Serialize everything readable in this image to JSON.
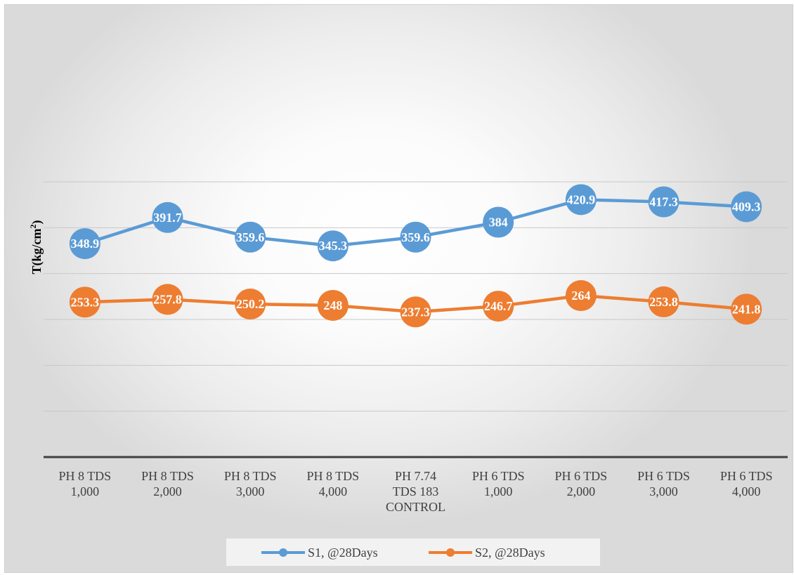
{
  "chart_data": {
    "type": "line",
    "ylabel": "T(kg/cm",
    "ylabel_sup": "2",
    "ylabel_close": ")",
    "categories": [
      [
        "PH 8 TDS",
        "1,000"
      ],
      [
        "PH 8 TDS",
        "2,000"
      ],
      [
        "PH 8 TDS",
        "3,000"
      ],
      [
        "PH 8 TDS",
        "4,000"
      ],
      [
        "PH 7.74",
        "TDS 183",
        "CONTROL"
      ],
      [
        "PH 6 TDS",
        "1,000"
      ],
      [
        "PH 6 TDS",
        "2,000"
      ],
      [
        "PH 6 TDS",
        "3,000"
      ],
      [
        "PH 6 TDS",
        "4,000"
      ]
    ],
    "series": [
      {
        "name": "S1, @28Days",
        "color": "#5b9bd5",
        "values": [
          348.9,
          391.7,
          359.6,
          345.3,
          359.6,
          384,
          420.9,
          417.3,
          409.3
        ],
        "labels": [
          "348.9",
          "391.7",
          "359.6",
          "345.3",
          "359.6",
          "384",
          "420.9",
          "417.3",
          "409.3"
        ]
      },
      {
        "name": "S2, @28Days",
        "color": "#ed7d31",
        "values": [
          253.3,
          257.8,
          250.2,
          248,
          237.3,
          246.7,
          264,
          253.8,
          241.8
        ],
        "labels": [
          "253.3",
          "257.8",
          "250.2",
          "248",
          "237.3",
          "246.7",
          "264",
          "253.8",
          "241.8"
        ]
      }
    ],
    "ylim": [
      0,
      450
    ],
    "gridlines": true,
    "legend_position": "bottom"
  }
}
